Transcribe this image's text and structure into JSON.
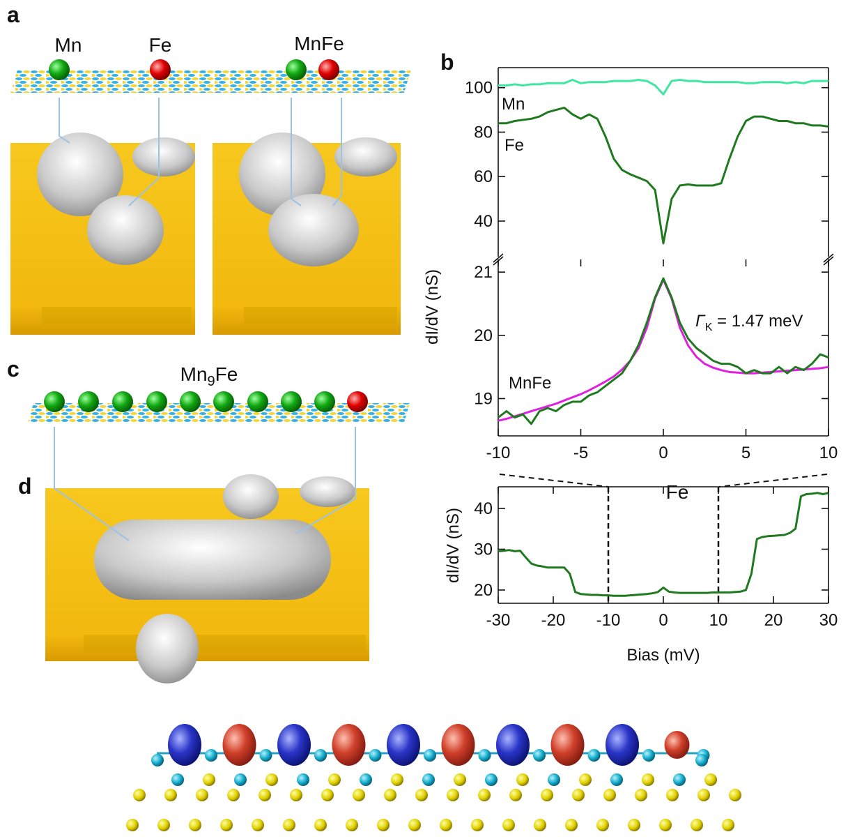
{
  "panels": {
    "a": "a",
    "b": "b",
    "c": "c",
    "d": "d"
  },
  "panel_a": {
    "atoms": [
      "Mn",
      "Fe",
      "MnFe"
    ]
  },
  "panel_c": {
    "label": {
      "element": "Mn",
      "subscript": "9",
      "rest": "Fe"
    }
  },
  "panel_d": {
    "atom": "Fe"
  },
  "chart_data": [
    {
      "type": "line",
      "x": [
        -10,
        -9.5,
        -9,
        -8.5,
        -8,
        -7.5,
        -7,
        -6.5,
        -6,
        -5.5,
        -5,
        -4.5,
        -4,
        -3.5,
        -3,
        -2.5,
        -2,
        -1.5,
        -1,
        -0.5,
        0,
        0.5,
        1,
        1.5,
        2,
        2.5,
        3,
        3.5,
        4,
        4.5,
        5,
        5.5,
        6,
        6.5,
        7,
        7.5,
        8,
        8.5,
        9,
        9.5,
        10
      ],
      "series": [
        {
          "name": "Mn",
          "color": "#3fe8a0",
          "values": [
            101,
            101,
            101.5,
            101,
            101.5,
            101.5,
            102,
            102,
            102,
            103.5,
            102,
            102.5,
            102.5,
            102.5,
            103,
            103,
            103,
            103.5,
            103,
            101,
            97,
            103,
            103.5,
            103,
            103,
            102.5,
            102.5,
            102.5,
            102.5,
            102.5,
            102,
            102,
            102.5,
            102.5,
            102.5,
            102,
            102.5,
            102,
            103,
            103,
            103
          ]
        },
        {
          "name": "Fe",
          "color": "#1f7a1f",
          "values": [
            84,
            84,
            85,
            85.5,
            86,
            87,
            89,
            90,
            91,
            88,
            86,
            88,
            86,
            78,
            68,
            63,
            61,
            59.5,
            58,
            54,
            30,
            50,
            56,
            56.5,
            56,
            56,
            56,
            57,
            68,
            78,
            85,
            87,
            87,
            86,
            85,
            85,
            84,
            84,
            83,
            83,
            82.5
          ]
        }
      ],
      "xlim": [
        -10,
        10
      ],
      "ylim": [
        24,
        109
      ],
      "yticks": [
        40,
        60,
        80,
        100
      ],
      "ylabel": "dI/dV (nS)"
    },
    {
      "type": "line",
      "x": [
        -10,
        -9.5,
        -9,
        -8.5,
        -8,
        -7.5,
        -7,
        -6.5,
        -6,
        -5.5,
        -5,
        -4.5,
        -4,
        -3.5,
        -3,
        -2.5,
        -2,
        -1.5,
        -1,
        -0.5,
        0,
        0.5,
        1,
        1.5,
        2,
        2.5,
        3,
        3.5,
        4,
        4.5,
        5,
        5.5,
        6,
        6.5,
        7,
        7.5,
        8,
        8.5,
        9,
        9.5,
        10
      ],
      "series": [
        {
          "color": "#e020e0",
          "values": [
            18.65,
            18.68,
            18.72,
            18.76,
            18.8,
            18.84,
            18.88,
            18.92,
            18.97,
            19.02,
            19.07,
            19.13,
            19.2,
            19.27,
            19.35,
            19.46,
            19.6,
            19.8,
            20.12,
            20.58,
            20.88,
            20.58,
            20.12,
            19.84,
            19.66,
            19.55,
            19.49,
            19.45,
            19.42,
            19.41,
            19.4,
            19.4,
            19.41,
            19.42,
            19.43,
            19.44,
            19.45,
            19.46,
            19.47,
            19.48,
            19.5
          ]
        },
        {
          "name": "MnFe",
          "color": "#1f7a1f",
          "values": [
            18.7,
            18.8,
            18.7,
            18.75,
            18.6,
            18.8,
            18.85,
            18.8,
            18.9,
            18.95,
            18.95,
            19.05,
            19.1,
            19.2,
            19.3,
            19.4,
            19.6,
            19.85,
            20.2,
            20.6,
            20.9,
            20.6,
            20.2,
            19.95,
            19.8,
            19.7,
            19.6,
            19.55,
            19.55,
            19.5,
            19.4,
            19.45,
            19.4,
            19.4,
            19.5,
            19.4,
            19.5,
            19.45,
            19.55,
            19.7,
            19.65
          ]
        }
      ],
      "xlim": [
        -10,
        10
      ],
      "xticks": [
        -10,
        -5,
        0,
        5,
        10
      ],
      "ylim": [
        18.41,
        21.2
      ],
      "yticks": [
        19,
        20,
        21
      ],
      "annotation": {
        "symbol": "Γ",
        "subscript": "K",
        "text": " = 1.47 meV"
      }
    },
    {
      "type": "line",
      "x": [
        -30,
        -29,
        -28,
        -27,
        -26,
        -25,
        -24,
        -23,
        -22,
        -21,
        -20,
        -19,
        -18,
        -17,
        -16,
        -15,
        -14,
        -13,
        -12,
        -11,
        -10,
        -9,
        -8,
        -7,
        -6,
        -5,
        -4,
        -3,
        -2,
        -1,
        0,
        1,
        2,
        3,
        4,
        5,
        6,
        7,
        8,
        9,
        10,
        11,
        12,
        13,
        14,
        15,
        16,
        17,
        18,
        19,
        20,
        21,
        22,
        23,
        24,
        25,
        26,
        27,
        28,
        29,
        30
      ],
      "series": [
        {
          "color": "#1f7a1f",
          "values": [
            29.5,
            29.6,
            29.8,
            29.5,
            29.6,
            28,
            26.5,
            26,
            25.8,
            25.5,
            25.5,
            25.5,
            25.5,
            24,
            19.5,
            19,
            18.9,
            18.8,
            18.8,
            18.7,
            18.7,
            18.6,
            18.6,
            18.6,
            18.7,
            18.8,
            18.9,
            19,
            19.2,
            19.5,
            20.6,
            19.6,
            19.4,
            19.3,
            19.3,
            19.3,
            19.3,
            19.3,
            19.3,
            19.4,
            19.4,
            19.4,
            19.4,
            19.5,
            19.6,
            20,
            24,
            32.5,
            33,
            33.2,
            33.3,
            33.4,
            33.5,
            34,
            35,
            43,
            43.5,
            43.6,
            43.8,
            43.5,
            43.8
          ]
        }
      ],
      "xlim": [
        -30,
        30
      ],
      "xticks": [
        -30,
        -20,
        -10,
        0,
        10,
        20,
        30
      ],
      "ylim": [
        16.75,
        45.3
      ],
      "yticks": [
        20,
        30,
        40
      ],
      "vlines": [
        -10,
        10
      ],
      "xlabel": "Bias (mV)",
      "ylabel": "dI/dV (nS)"
    }
  ]
}
